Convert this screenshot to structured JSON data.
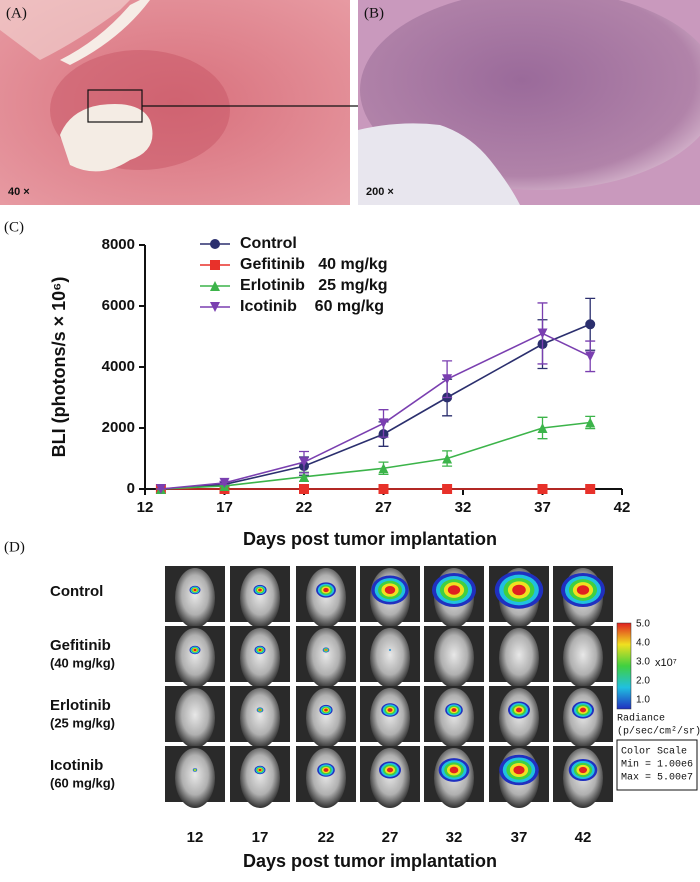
{
  "panels": {
    "A": {
      "label": "(A)",
      "magnification": "40 ×"
    },
    "B": {
      "label": "(B)",
      "magnification": "200 ×"
    },
    "C": {
      "label": "(C)"
    },
    "D": {
      "label": "(D)"
    }
  },
  "chart_data": {
    "type": "line",
    "xlabel": "Days post tumor implantation",
    "ylabel": "BLI (photons/s × 10⁶)",
    "x": [
      13,
      17,
      22,
      27,
      31,
      37,
      40
    ],
    "xlim": [
      12,
      42
    ],
    "xticks": [
      12,
      17,
      22,
      27,
      32,
      37,
      42
    ],
    "ylim": [
      0,
      8000
    ],
    "yticks": [
      0,
      2000,
      4000,
      6000,
      8000
    ],
    "legend": "upper left",
    "series": [
      {
        "name": "Control",
        "color": "#2b2f6e",
        "marker": "circle",
        "values": [
          0,
          150,
          750,
          1800,
          3000,
          4750,
          5400
        ],
        "errors": [
          0,
          50,
          300,
          400,
          600,
          800,
          850
        ]
      },
      {
        "name": "Gefitinib   40 mg/kg",
        "color": "#e8312a",
        "marker": "square",
        "values": [
          0,
          0,
          0,
          0,
          0,
          0,
          0
        ],
        "errors": [
          0,
          0,
          0,
          0,
          0,
          0,
          0
        ]
      },
      {
        "name": "Erlotinib   25 mg/kg",
        "color": "#3cb44a",
        "marker": "triangle-up",
        "values": [
          0,
          100,
          400,
          680,
          1000,
          2000,
          2180
        ],
        "errors": [
          0,
          30,
          150,
          200,
          250,
          350,
          200
        ]
      },
      {
        "name": "Icotinib    60 mg/kg",
        "color": "#7a3fb0",
        "marker": "triangle-down",
        "values": [
          0,
          200,
          880,
          2150,
          3600,
          5100,
          4350
        ],
        "errors": [
          0,
          50,
          350,
          450,
          600,
          1000,
          500
        ]
      }
    ]
  },
  "imaging": {
    "rows": [
      {
        "name": "Control"
      },
      {
        "name": "Gefitinib",
        "dose": "(40 mg/kg)"
      },
      {
        "name": "Erlotinib",
        "dose": "(25 mg/kg)"
      },
      {
        "name": "Icotinib",
        "dose": "(60 mg/kg)"
      }
    ],
    "days": [
      "12",
      "17",
      "22",
      "27",
      "32",
      "37",
      "42"
    ],
    "xlabel": "Days post tumor implantation",
    "colorbar": {
      "ticks": [
        "5.0",
        "4.0",
        "3.0",
        "2.0",
        "1.0"
      ],
      "multiplier": "x10⁷",
      "title": "Radiance",
      "units": "(p/sec/cm²/sr)"
    },
    "scale_box": [
      "Color Scale",
      "Min = 1.00e6",
      "Max = 5.00e7"
    ]
  }
}
